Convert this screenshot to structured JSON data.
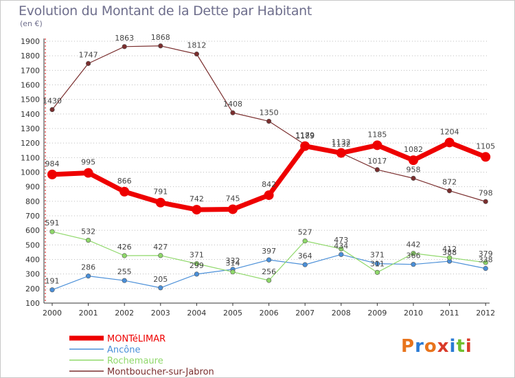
{
  "header": {
    "title": "Evolution du Montant de la Dette par Habitant",
    "subtitle": "(en €)"
  },
  "logo": {
    "text": "Proxiti"
  },
  "colors": {
    "grid": "#bcbcbc",
    "axis": "#333333",
    "axis_accent": "#e00000",
    "title": "#6e6e8c",
    "logo_letters": [
      "#e8741c",
      "#2a7bd5",
      "#e8741c",
      "#d93b2a",
      "#2a7bd5",
      "#6fbf2e",
      "#d93b2a"
    ]
  },
  "chart_data": {
    "type": "line",
    "title": "Evolution du Montant de la Dette par Habitant",
    "subtitle": "(en €)",
    "xlabel": "",
    "ylabel": "",
    "x": [
      "2000",
      "2001",
      "2002",
      "2003",
      "2004",
      "2005",
      "2006",
      "2007",
      "2008",
      "2009",
      "2010",
      "2011",
      "2012"
    ],
    "ylim": [
      100,
      1900
    ],
    "yticks": [
      100,
      200,
      300,
      400,
      500,
      600,
      700,
      800,
      900,
      1000,
      1100,
      1200,
      1300,
      1400,
      1500,
      1600,
      1700,
      1800,
      1900
    ],
    "grid": "dotted-horizontal",
    "legend_position": "bottom-left",
    "series": [
      {
        "name": "MONTéLIMAR",
        "color": "#ee0000",
        "emphasis": true,
        "values": [
          984,
          995,
          866,
          791,
          742,
          745,
          842,
          1179,
          1132,
          1185,
          1082,
          1204,
          1105
        ]
      },
      {
        "name": "Ancône",
        "color": "#4a8fd8",
        "emphasis": false,
        "values": [
          191,
          286,
          255,
          205,
          299,
          332,
          397,
          364,
          434,
          371,
          366,
          388,
          338
        ]
      },
      {
        "name": "Rochemaure",
        "color": "#8fd86a",
        "emphasis": false,
        "values": [
          591,
          532,
          426,
          427,
          371,
          314,
          256,
          527,
          473,
          311,
          442,
          412,
          379
        ]
      },
      {
        "name": "Montboucher-sur-Jabron",
        "color": "#7a2e2e",
        "emphasis": false,
        "values": [
          1430,
          1747,
          1863,
          1868,
          1812,
          1408,
          1350,
          1189,
          1132,
          1017,
          958,
          872,
          798
        ]
      }
    ]
  }
}
